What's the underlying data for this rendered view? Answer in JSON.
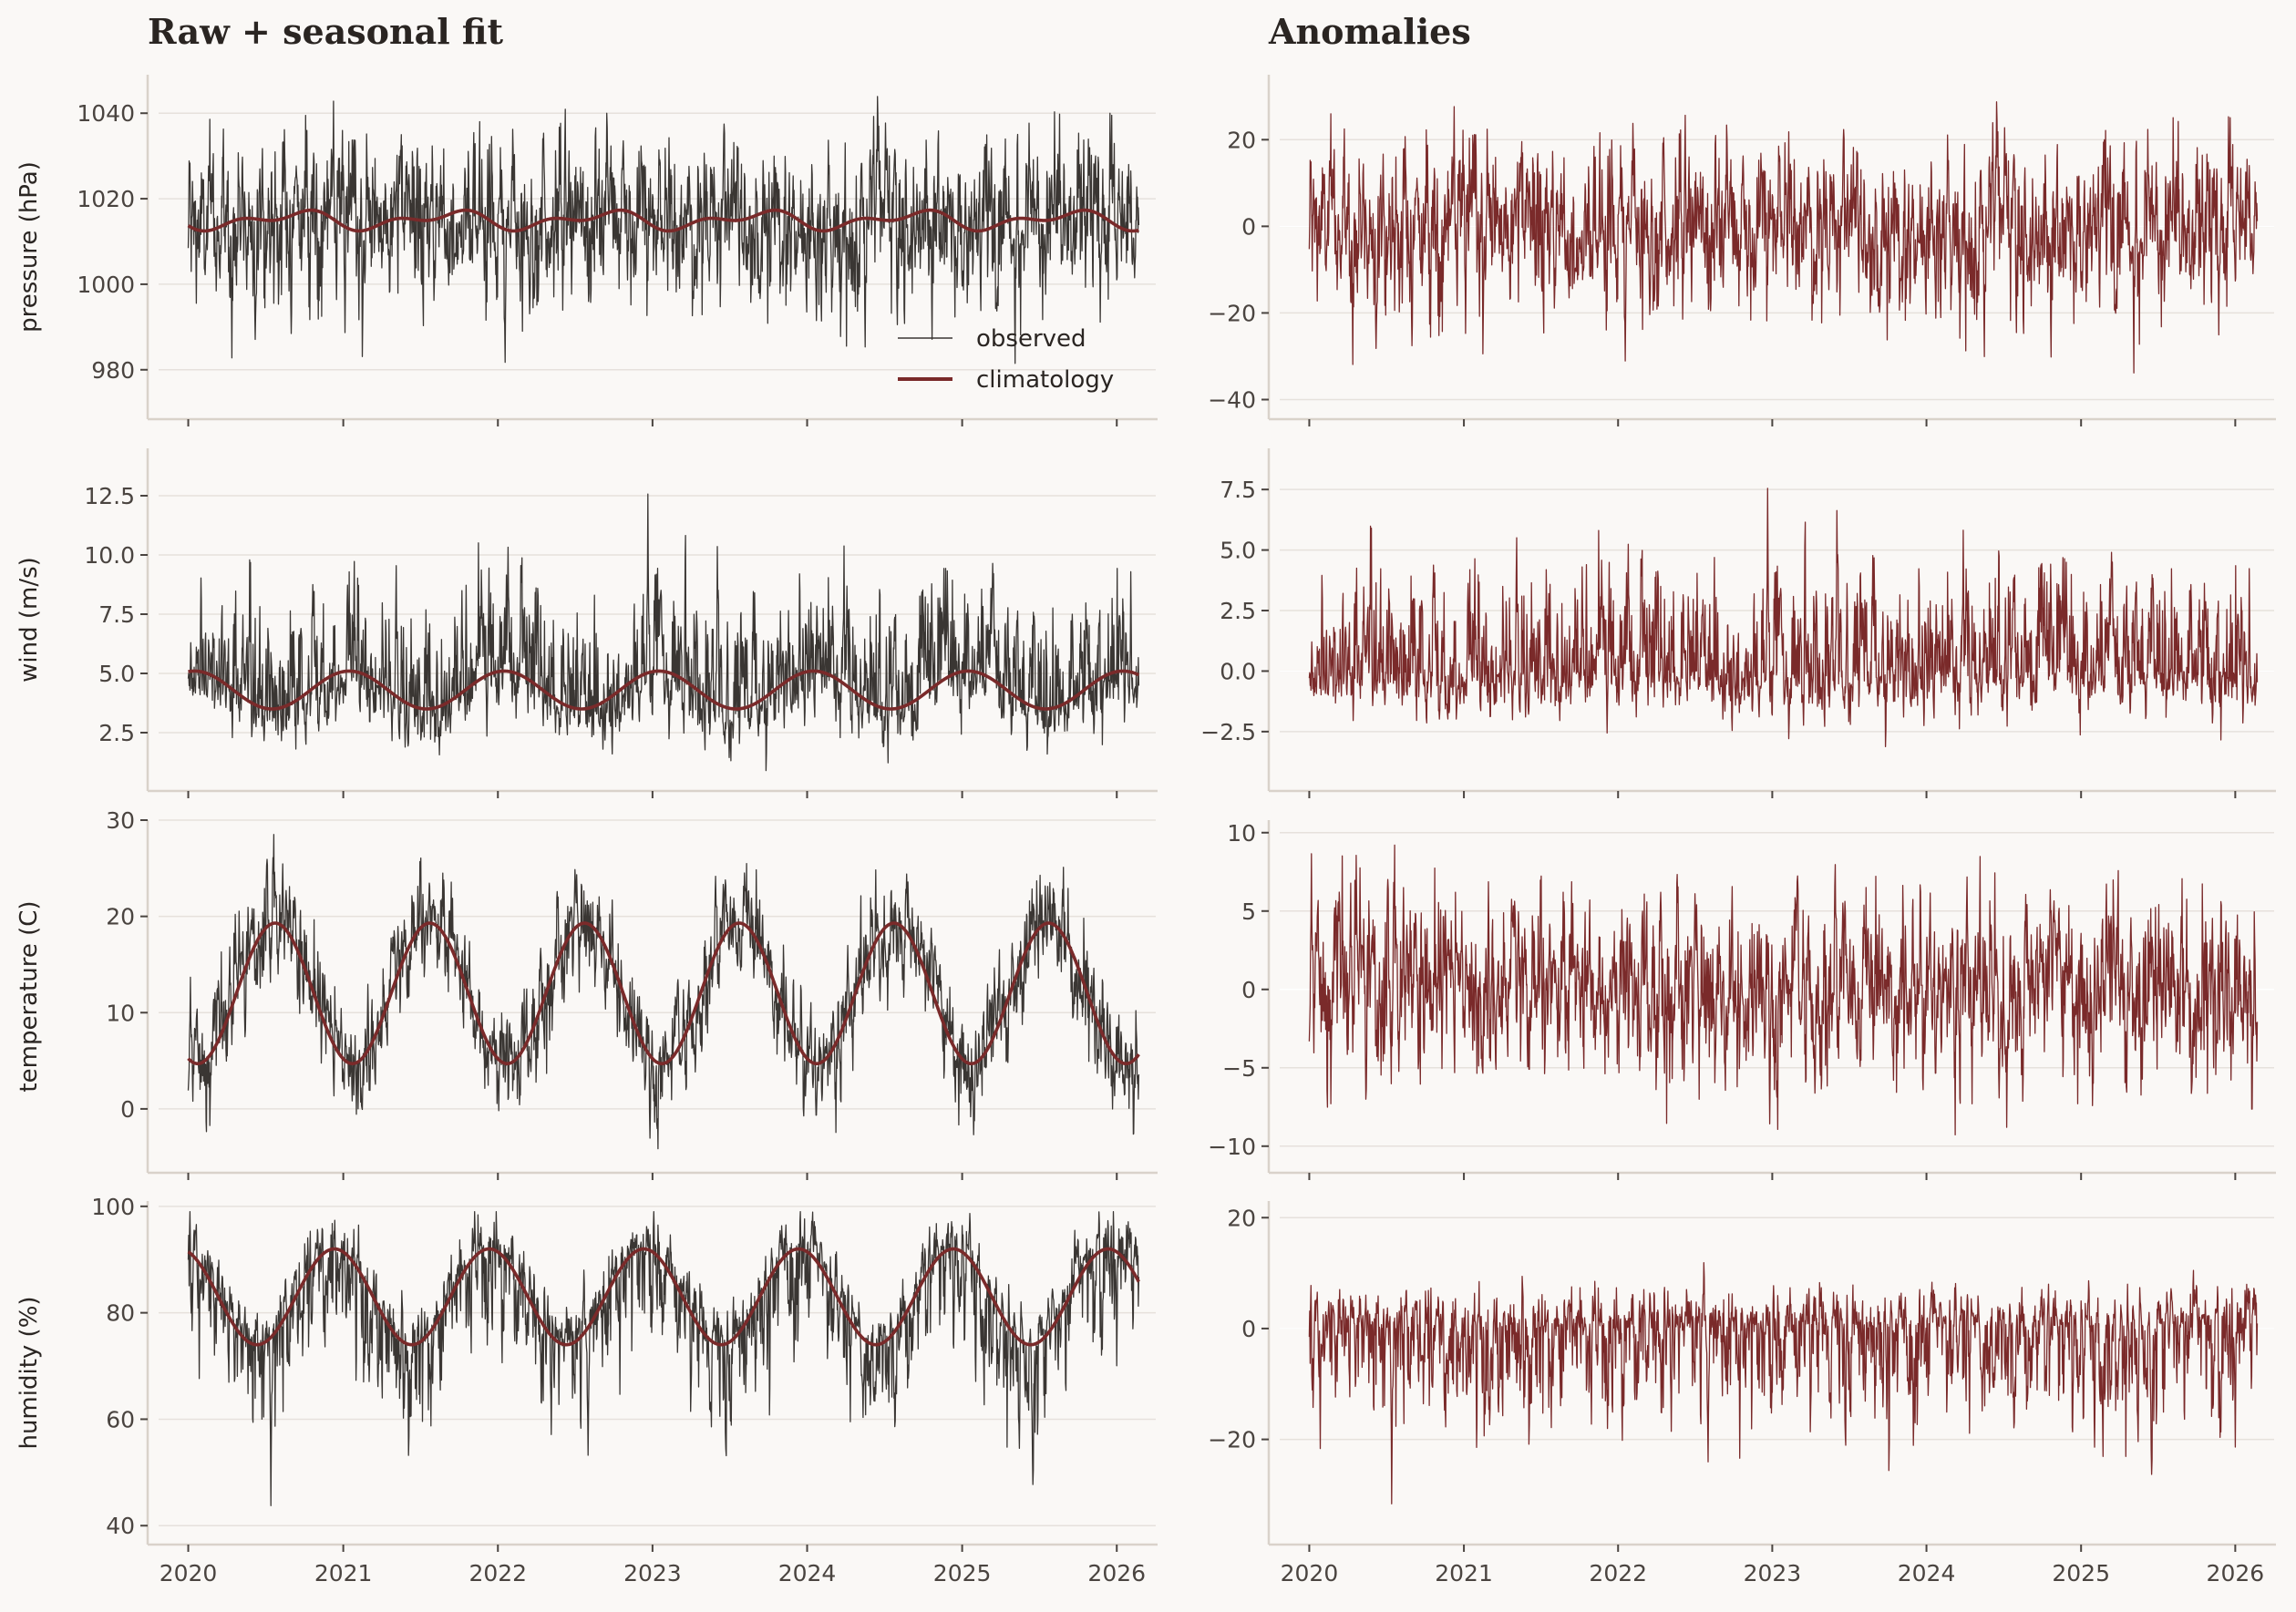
{
  "columns": [
    "Raw + seasonal fit",
    "Anomalies"
  ],
  "legend": [
    "observed",
    "climatology"
  ],
  "colors": {
    "observed": "#3a3633",
    "climatology": "#7a2a2a",
    "anomaly": "#7a2a2a"
  },
  "chart_data": [
    {
      "type": "line",
      "panel": "raw",
      "ylabel": "pressure (hPa)",
      "yticks": [
        980,
        1000,
        1020,
        1040
      ],
      "ylim": [
        971,
        1049
      ],
      "grid": true,
      "legend_position": "lower-right",
      "x_range": [
        "2020-01-01",
        "2026-02-22"
      ],
      "climatology": {
        "mean": 1015,
        "amplitude": 1.6,
        "peak_day": 250,
        "h2_amplitude": 1.2,
        "h2_peak_day": 120
      },
      "observed": {
        "noise_sd": 9.5,
        "spike_range": [
          975,
          1047
        ]
      },
      "series": [
        {
          "name": "observed"
        },
        {
          "name": "climatology"
        }
      ]
    },
    {
      "type": "line",
      "panel": "raw",
      "ylabel": "wind (m/s)",
      "yticks": [
        2.5,
        5.0,
        7.5,
        10.0,
        12.5
      ],
      "ylim": [
        0.5,
        14.5
      ],
      "grid": true,
      "x_range": [
        "2020-01-01",
        "2026-02-22"
      ],
      "climatology": {
        "mean": 4.3,
        "amplitude": 0.8,
        "peak_day": 15
      },
      "observed": {
        "noise_sd": 1.4,
        "skew": "positive",
        "spike_range": [
          0.9,
          13.8
        ]
      },
      "series": [
        {
          "name": "observed"
        },
        {
          "name": "climatology"
        }
      ]
    },
    {
      "type": "line",
      "panel": "raw",
      "ylabel": "temperature (C)",
      "yticks": [
        0,
        10,
        20,
        30
      ],
      "ylim": [
        -5.5,
        30
      ],
      "grid": true,
      "x_range": [
        "2020-01-01",
        "2026-02-22"
      ],
      "climatology": {
        "mean": 12,
        "amplitude": 7.3,
        "peak_day": 205
      },
      "observed": {
        "noise_sd": 2.9,
        "spike_range": [
          -5,
          28.5
        ]
      },
      "series": [
        {
          "name": "observed"
        },
        {
          "name": "climatology"
        }
      ]
    },
    {
      "type": "line",
      "panel": "raw",
      "ylabel": "humidity (%)",
      "yticks": [
        40,
        60,
        80,
        100
      ],
      "ylim": [
        38.5,
        101
      ],
      "grid": true,
      "x_range": [
        "2020-01-01",
        "2026-02-22"
      ],
      "climatology": {
        "mean": 83,
        "amplitude": 9,
        "peak_day": 345
      },
      "observed": {
        "noise_sd": 5.5,
        "skew": "negative",
        "spike_range": [
          40,
          99
        ]
      },
      "series": [
        {
          "name": "observed"
        },
        {
          "name": "climatology"
        }
      ]
    },
    {
      "type": "line",
      "panel": "anomaly",
      "yticks": [
        -40,
        -20,
        0,
        20
      ],
      "ylim": [
        -42,
        35
      ],
      "grid": true,
      "x_range": [
        "2020-01-01",
        "2026-02-22"
      ],
      "anomaly": {
        "noise_sd": 9.5,
        "spike_range": [
          -39,
          32
        ]
      }
    },
    {
      "type": "line",
      "panel": "anomaly",
      "yticks": [
        -2.5,
        0.0,
        2.5,
        5.0,
        7.5
      ],
      "ylim": [
        -4.5,
        9.2
      ],
      "grid": true,
      "x_range": [
        "2020-01-01",
        "2026-02-22"
      ],
      "anomaly": {
        "noise_sd": 1.4,
        "skew": "positive",
        "spike_range": [
          -4,
          8.8
        ]
      }
    },
    {
      "type": "line",
      "panel": "anomaly",
      "yticks": [
        -10,
        -5,
        0,
        5,
        10
      ],
      "ylim": [
        -11,
        10.8
      ],
      "grid": true,
      "x_range": [
        "2020-01-01",
        "2026-02-22"
      ],
      "anomaly": {
        "noise_sd": 2.9,
        "spike_range": [
          -10.5,
          9.3
        ]
      }
    },
    {
      "type": "line",
      "panel": "anomaly",
      "yticks": [
        -20,
        0,
        20
      ],
      "ylim": [
        -37,
        23
      ],
      "grid": true,
      "x_range": [
        "2020-01-01",
        "2026-02-22"
      ],
      "anomaly": {
        "noise_sd": 5.5,
        "skew": "negative",
        "spike_range": [
          -35,
          20.5
        ]
      }
    }
  ],
  "xticks": [
    "2020",
    "2021",
    "2022",
    "2023",
    "2024",
    "2025",
    "2026"
  ]
}
